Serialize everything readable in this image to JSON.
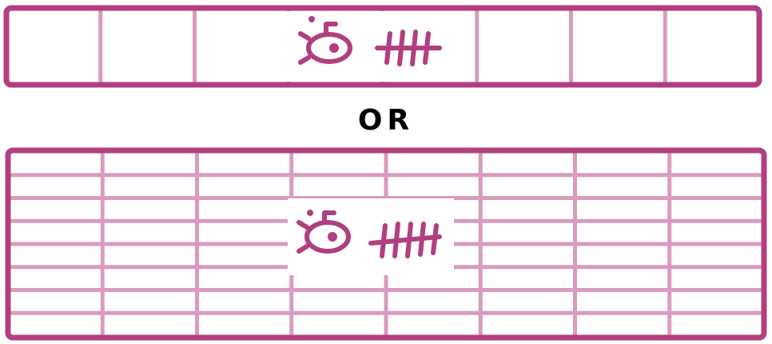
{
  "separator_text": "OR",
  "colors": {
    "border": "#b13f7f",
    "grid": "#d99bbf",
    "icon": "#b13f7f",
    "background": "#ffffff",
    "separator": "#000000"
  },
  "top_diagram": {
    "columns": 8,
    "rows": 1,
    "highlight_columns": [
      3,
      4
    ],
    "icons": [
      "submarine-icon",
      "fishbone-icon"
    ]
  },
  "bottom_diagram": {
    "columns": 8,
    "rows": 8,
    "highlight_columns": [
      3,
      4
    ],
    "highlight_rows": [
      2,
      3,
      4
    ],
    "icons": [
      "submarine-icon",
      "fishbone-icon"
    ]
  }
}
